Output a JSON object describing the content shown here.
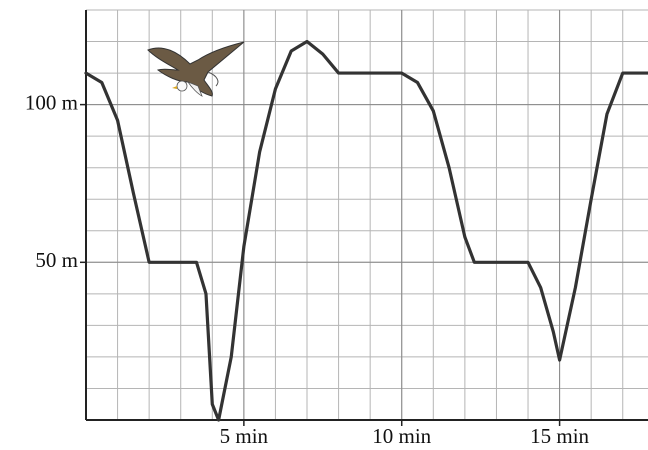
{
  "chart_data": {
    "type": "line",
    "x": [
      0,
      0.5,
      1,
      1.5,
      2,
      3,
      3.5,
      3.8,
      4,
      4.2,
      4.6,
      5,
      5.5,
      6,
      6.5,
      7,
      7.5,
      8,
      9,
      10,
      10.5,
      11,
      11.5,
      12,
      12.3,
      13,
      14,
      14.4,
      14.8,
      15,
      15.5,
      16,
      16.5,
      17,
      17.8
    ],
    "values": [
      110,
      107,
      95,
      72,
      50,
      50,
      50,
      40,
      5,
      0,
      20,
      55,
      85,
      105,
      117,
      120,
      116,
      110,
      110,
      110,
      107,
      98,
      80,
      58,
      50,
      50,
      50,
      42,
      28,
      19,
      42,
      70,
      97,
      110,
      110
    ],
    "color": "#333333",
    "xlim": [
      0,
      17.8
    ],
    "ylim": [
      0,
      130
    ],
    "xticks": [
      {
        "value": 5,
        "label": "5 min"
      },
      {
        "value": 10,
        "label": "10 min"
      },
      {
        "value": 15,
        "label": "15 min"
      }
    ],
    "yticks": [
      {
        "value": 50,
        "label": "50 m"
      },
      {
        "value": 100,
        "label": "100 m"
      }
    ],
    "grid": true
  }
}
